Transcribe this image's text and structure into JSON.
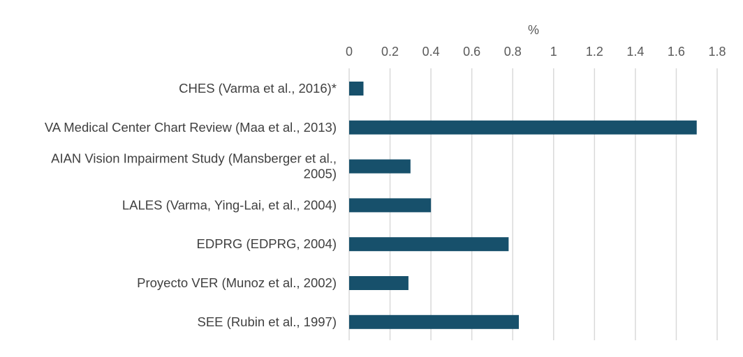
{
  "chart_data": {
    "type": "bar",
    "orientation": "horizontal",
    "title": "",
    "xlabel": "%",
    "ylabel": "",
    "xlim": [
      0,
      1.8
    ],
    "x_ticks": [
      "0",
      "0.2",
      "0.4",
      "0.6",
      "0.8",
      "1",
      "1.2",
      "1.4",
      "1.6",
      "1.8"
    ],
    "x_axis_position": "top",
    "grid": true,
    "legend": "none",
    "bar_color": "#17506B",
    "categories": [
      "CHES (Varma et al., 2016)*",
      "VA Medical Center Chart Review (Maa et al., 2013)",
      "AIAN Vision Impairment Study (Mansberger et al., 2005)",
      "LALES  (Varma, Ying-Lai, et al., 2004)",
      "EDPRG (EDPRG, 2004)",
      "Proyecto VER  (Munoz et al., 2002)",
      "SEE (Rubin et al., 1997)"
    ],
    "category_lines": [
      [
        "CHES (Varma et al., 2016)*"
      ],
      [
        "VA Medical Center Chart Review (Maa et al., 2013)"
      ],
      [
        "AIAN Vision Impairment Study (Mansberger et al.,",
        "2005)"
      ],
      [
        "LALES  (Varma, Ying-Lai, et al., 2004)"
      ],
      [
        "EDPRG (EDPRG, 2004)"
      ],
      [
        "Proyecto VER  (Munoz et al., 2002)"
      ],
      [
        "SEE (Rubin et al., 1997)"
      ]
    ],
    "values": [
      0.07,
      1.7,
      0.3,
      0.4,
      0.78,
      0.29,
      0.83
    ]
  }
}
